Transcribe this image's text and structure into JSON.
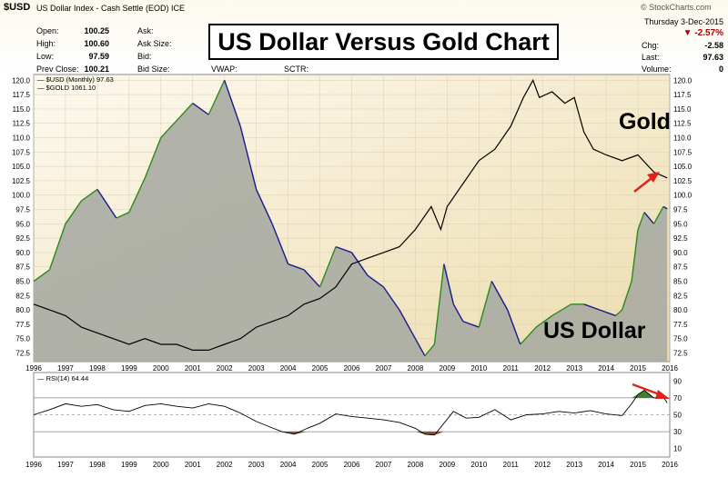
{
  "header": {
    "symbol": "$USD",
    "description": "US Dollar Index - Cash Settle (EOD) ICE",
    "watermark": "© StockCharts.com",
    "date": "Thursday 3-Dec-2015",
    "fields": {
      "open_label": "Open:",
      "open": "100.25",
      "high_label": "High:",
      "high": "100.60",
      "low_label": "Low:",
      "low": "97.59",
      "prev_label": "Prev Close:",
      "prev": "100.21",
      "ask_label": "Ask:",
      "ask_size_label": "Ask Size:",
      "bid_label": "Bid:",
      "bid_size_label": "Bid Size:",
      "vwap_label": "VWAP:",
      "sctr_label": "SCTR:",
      "pct_change": "-2.57%",
      "chg_label": "Chg:",
      "chg": "-2.58",
      "last_label": "Last:",
      "last": "97.63",
      "volume_label": "Volume:",
      "volume": "0"
    }
  },
  "overlay_title": "US Dollar Versus Gold Chart",
  "colors": {
    "area_fill": "#a9aba3",
    "up_line": "#2c8a1a",
    "down_line": "#1a1a8c",
    "gold_line": "#000000",
    "arrow": "#e0241c",
    "pct_change": "#b00000",
    "bg_start": "#fdf9ee",
    "bg_end": "#ecdcae"
  },
  "chart_data": [
    {
      "type": "area",
      "legend": [
        "$USD (Monthly) 97.63",
        "$GOLD 1061.10"
      ],
      "annotations": [
        "Gold",
        "US Dollar"
      ],
      "x_ticks": [
        "1996",
        "1997",
        "1998",
        "1999",
        "2000",
        "2001",
        "2002",
        "2003",
        "2004",
        "2005",
        "2006",
        "2007",
        "2008",
        "2009",
        "2010",
        "2011",
        "2012",
        "2013",
        "2014",
        "2015",
        "2016"
      ],
      "y_ticks": [
        "120.0",
        "117.5",
        "115.0",
        "112.5",
        "110.0",
        "107.5",
        "105.0",
        "102.5",
        "100.0",
        "97.5",
        "95.0",
        "92.5",
        "90.0",
        "87.5",
        "85.0",
        "82.5",
        "80.0",
        "77.5",
        "75.0",
        "72.5"
      ],
      "ylim": [
        71,
        121
      ],
      "series": [
        {
          "name": "$USD (Monthly) 97.63",
          "x": [
            1996.0,
            1996.5,
            1997.0,
            1997.5,
            1998.0,
            1998.6,
            1999.0,
            1999.5,
            2000.0,
            2000.5,
            2001.0,
            2001.5,
            2002.0,
            2002.5,
            2003.0,
            2003.5,
            2004.0,
            2004.5,
            2005.0,
            2005.5,
            2006.0,
            2006.5,
            2007.0,
            2007.5,
            2008.0,
            2008.3,
            2008.6,
            2008.9,
            2009.2,
            2009.5,
            2010.0,
            2010.4,
            2010.9,
            2011.3,
            2011.8,
            2012.3,
            2012.9,
            2013.3,
            2013.8,
            2014.3,
            2014.5,
            2014.8,
            2015.0,
            2015.2,
            2015.5,
            2015.8,
            2015.92
          ],
          "values": [
            85,
            87,
            95,
            99,
            101,
            96,
            97,
            103,
            110,
            113,
            116,
            114,
            120,
            112,
            101,
            95,
            88,
            87,
            84,
            91,
            90,
            86,
            84,
            80,
            75,
            72,
            74,
            88,
            81,
            78,
            77,
            85,
            80,
            74,
            77,
            79,
            81,
            81,
            80,
            79,
            80,
            85,
            94,
            97,
            95,
            98,
            97.6
          ]
        },
        {
          "name": "$GOLD 1061.10",
          "x": [
            1996.0,
            1996.5,
            1997.0,
            1997.5,
            1998.0,
            1998.5,
            1999.0,
            1999.5,
            2000.0,
            2000.5,
            2001.0,
            2001.5,
            2002.0,
            2002.5,
            2003.0,
            2003.5,
            2004.0,
            2004.5,
            2005.0,
            2005.5,
            2006.0,
            2006.5,
            2007.0,
            2007.5,
            2008.0,
            2008.5,
            2008.8,
            2009.0,
            2009.5,
            2010.0,
            2010.5,
            2011.0,
            2011.4,
            2011.7,
            2011.9,
            2012.3,
            2012.7,
            2013.0,
            2013.3,
            2013.6,
            2014.0,
            2014.5,
            2015.0,
            2015.5,
            2015.92
          ],
          "values": [
            81,
            80,
            79,
            77,
            76,
            75,
            74,
            75,
            74,
            74,
            73,
            73,
            74,
            75,
            77,
            78,
            79,
            81,
            82,
            84,
            88,
            89,
            90,
            91,
            94,
            98,
            94,
            98,
            102,
            106,
            108,
            112,
            117,
            120,
            117,
            118,
            116,
            117,
            111,
            108,
            107,
            106,
            107,
            104,
            103
          ]
        }
      ]
    },
    {
      "type": "line",
      "legend": [
        "RSI(14) 64.44"
      ],
      "x_ticks": [
        "1996",
        "1997",
        "1998",
        "1999",
        "2000",
        "2001",
        "2002",
        "2003",
        "2004",
        "2005",
        "2006",
        "2007",
        "2008",
        "2009",
        "2010",
        "2011",
        "2012",
        "2013",
        "2014",
        "2015",
        "2016"
      ],
      "y_ticks": [
        "90",
        "70",
        "50",
        "30",
        "10"
      ],
      "ylim": [
        0,
        100
      ],
      "series": [
        {
          "name": "RSI(14) 64.44",
          "x": [
            1996.0,
            1996.5,
            1997.0,
            1997.5,
            1998.0,
            1998.5,
            1999.0,
            1999.5,
            2000.0,
            2000.5,
            2001.0,
            2001.5,
            2002.0,
            2002.5,
            2003.0,
            2003.4,
            2003.8,
            2004.2,
            2004.6,
            2005.0,
            2005.5,
            2006.0,
            2006.5,
            2007.0,
            2007.5,
            2008.0,
            2008.3,
            2008.6,
            2008.9,
            2009.2,
            2009.6,
            2010.0,
            2010.5,
            2011.0,
            2011.5,
            2012.0,
            2012.5,
            2013.0,
            2013.5,
            2014.0,
            2014.5,
            2014.8,
            2015.0,
            2015.2,
            2015.5,
            2015.8,
            2015.92
          ],
          "values": [
            50,
            56,
            63,
            60,
            62,
            56,
            54,
            61,
            63,
            60,
            58,
            63,
            60,
            52,
            42,
            36,
            30,
            27,
            34,
            40,
            51,
            48,
            46,
            44,
            41,
            34,
            27,
            26,
            40,
            54,
            46,
            47,
            56,
            44,
            50,
            51,
            54,
            52,
            55,
            51,
            49,
            63,
            74,
            79,
            70,
            71,
            64
          ]
        }
      ]
    }
  ]
}
